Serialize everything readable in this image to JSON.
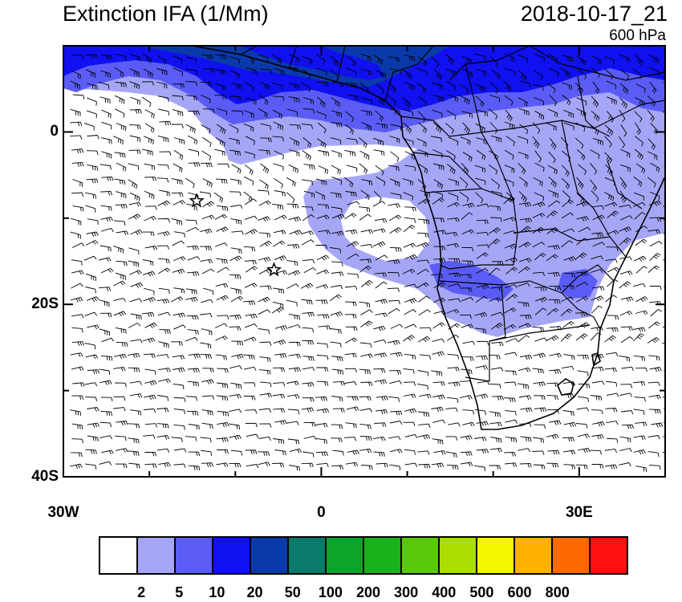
{
  "header": {
    "title": "Extinction IFA (1/Mm)",
    "datetime": "2018-10-17_21",
    "level": "600 hPa"
  },
  "axes": {
    "lat_ticks": [
      {
        "label": "0",
        "lat": 0
      },
      {
        "label": "20S",
        "lat": -20
      },
      {
        "label": "40S",
        "lat": -40
      }
    ],
    "lon_ticks": [
      {
        "label": "30W",
        "lon": -30
      },
      {
        "label": "0",
        "lon": 0
      },
      {
        "label": "30E",
        "lon": 30
      }
    ]
  },
  "colorbar": {
    "colors": [
      "#ffffff",
      "#a6a6f7",
      "#5a5cf5",
      "#1010f0",
      "#0a3aaa",
      "#0a7a6a",
      "#0aa52a",
      "#1ab21a",
      "#5ac80a",
      "#aadd00",
      "#f5f500",
      "#ffb000",
      "#ff6a00",
      "#ff1010"
    ],
    "labels": [
      "2",
      "5",
      "10",
      "20",
      "50",
      "100",
      "200",
      "300",
      "400",
      "500",
      "600",
      "800"
    ]
  },
  "map": {
    "markers": [
      {
        "name": "star-marker-1",
        "lon": -14.5,
        "lat": -8
      },
      {
        "name": "star-marker-2",
        "lon": -5.5,
        "lat": -16
      }
    ]
  }
}
